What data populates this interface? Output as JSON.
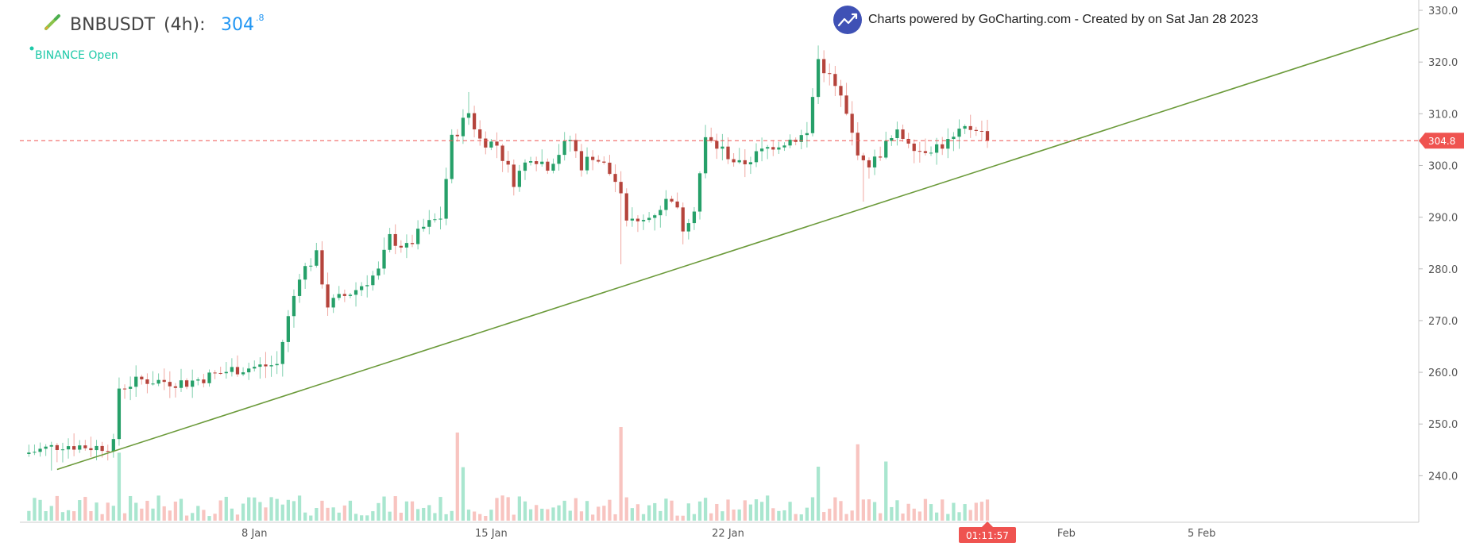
{
  "header": {
    "symbol": "BNBUSDT",
    "interval": "(4h):",
    "price_main": "304",
    "price_sup": ".8",
    "exchange_status": "BINANCE Open",
    "credit": "Charts powered by GoCharting.com - Created by  on Sat Jan 28 2023"
  },
  "colors": {
    "up": "#26a069",
    "down": "#b5443c",
    "volume_up": "#a9e6cf",
    "volume_down": "#f8c4c0",
    "trendline": "#6b9a3a",
    "price_line": "#ef5350",
    "title_price": "#2196f3",
    "exchange_text": "#1ec9a8"
  },
  "icons": {
    "pen": "pencil-icon",
    "logo": "trending-up-icon"
  },
  "chart_data": {
    "type": "candlestick",
    "symbol": "BNBUSDT",
    "interval": "4h",
    "ylim": [
      231,
      332
    ],
    "xlim": [
      -1.6,
      246.5
    ],
    "y_ticks": [
      240,
      250,
      260,
      270,
      280,
      290,
      300,
      310,
      320,
      330
    ],
    "y_tick_labels": [
      "240.0",
      "250.0",
      "260.0",
      "270.0",
      "280.0",
      "290.0",
      "300.0",
      "310.0",
      "320.0",
      "330.0"
    ],
    "x_ticks": [
      {
        "label": "8 Jan",
        "index": 40
      },
      {
        "label": "15 Jan",
        "index": 82
      },
      {
        "label": "22 Jan",
        "index": 124
      },
      {
        "label": "Feb",
        "index": 184
      },
      {
        "label": "5 Feb",
        "index": 208
      }
    ],
    "anchor_values": {
      "start_price": 244.5,
      "jan4_close": 257,
      "jan14_peak": 314.2,
      "jan18_low": 280.9,
      "jan23_peak": 323.2,
      "jan23_dip": 293,
      "last_close": 304.8
    },
    "last_price": 304.8,
    "last_price_label": "304.8",
    "countdown": "01:11:57",
    "trendline": {
      "start": {
        "index": 5,
        "price": 241.2
      },
      "end": {
        "index": 246.5,
        "price": 326.5
      }
    },
    "price_line": 304.8
  }
}
